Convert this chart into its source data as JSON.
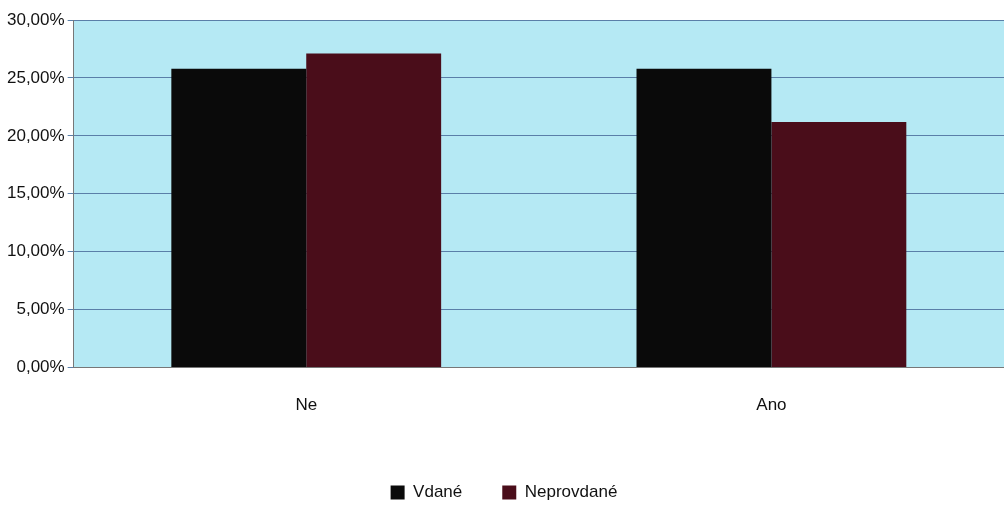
{
  "chart_data": {
    "type": "bar",
    "categories": [
      "Ne",
      "Ano"
    ],
    "series": [
      {
        "name": "Vdané",
        "color": "#0a0a0a",
        "values": [
          25.8,
          25.8
        ]
      },
      {
        "name": "Neprovdané",
        "color": "#4a0d1a",
        "values": [
          27.1,
          21.2
        ]
      }
    ],
    "ylim": [
      0,
      30
    ],
    "yticks": [
      {
        "value": 0,
        "label": "0,00%"
      },
      {
        "value": 5,
        "label": "5,00%"
      },
      {
        "value": 10,
        "label": "10,00%"
      },
      {
        "value": 15,
        "label": "15,00%"
      },
      {
        "value": 20,
        "label": "20,00%"
      },
      {
        "value": 25,
        "label": "25,00%"
      },
      {
        "value": 30,
        "label": "30,00%"
      }
    ],
    "grid": "y",
    "legend": "bottom"
  }
}
